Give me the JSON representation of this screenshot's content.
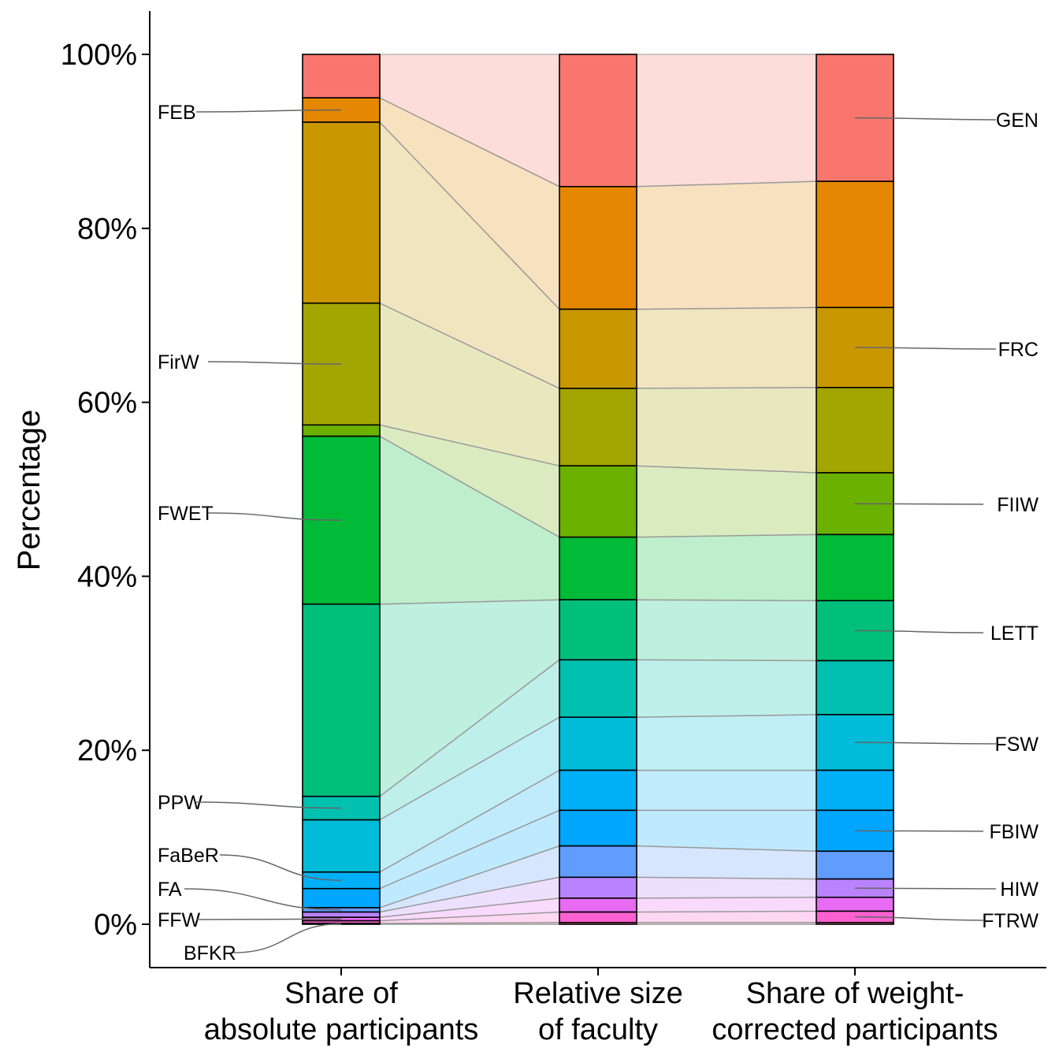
{
  "chart_data": {
    "type": "alluvial",
    "ylabel": "Percentage",
    "ylim": [
      0,
      100
    ],
    "yticks": [
      "0%",
      "20%",
      "40%",
      "60%",
      "80%",
      "100%"
    ],
    "ytick_values": [
      0,
      20,
      40,
      60,
      80,
      100
    ],
    "axes": [
      [
        "Share of",
        "absolute participants"
      ],
      [
        "Relative size",
        "of faculty"
      ],
      [
        "Share of weight-",
        "corrected participants"
      ]
    ],
    "strata": [
      "GEN",
      "FEB",
      "FRC",
      "FirW",
      "FIIW",
      "FWET",
      "LETT",
      "PPW",
      "FSW",
      "FaBeR",
      "FBIW",
      "FA",
      "HIW",
      "FFW",
      "FTRW",
      "BFKR"
    ],
    "colors": {
      "GEN": "#F8766D",
      "FEB": "#E58700",
      "FRC": "#C99800",
      "FirW": "#A3A500",
      "FIIW": "#6BB100",
      "FWET": "#00BA38",
      "LETT": "#00BF7D",
      "PPW": "#00C0AF",
      "FSW": "#00BCD8",
      "FaBeR": "#00B0F6",
      "FBIW": "#00A6FF",
      "FA": "#619CFF",
      "HIW": "#B983FF",
      "FFW": "#E76BF3",
      "FTRW": "#FD61D1",
      "BFKR": "#FF67A4"
    },
    "series": [
      {
        "name": "Share of absolute participants",
        "values": [
          5.0,
          2.8,
          20.8,
          14.0,
          1.3,
          19.3,
          22.1,
          2.7,
          6.0,
          1.9,
          2.2,
          0.5,
          0.6,
          0.4,
          0.3,
          0.1
        ]
      },
      {
        "name": "Relative size of faculty",
        "values": [
          15.2,
          14.1,
          9.1,
          8.9,
          8.2,
          7.2,
          6.9,
          6.6,
          6.1,
          4.6,
          4.1,
          3.6,
          2.4,
          1.6,
          1.2,
          0.2
        ]
      },
      {
        "name": "Share of weight-corrected participants",
        "values": [
          14.6,
          14.5,
          9.2,
          9.8,
          7.1,
          7.6,
          6.9,
          6.2,
          6.4,
          4.6,
          4.7,
          3.2,
          2.1,
          1.6,
          1.3,
          0.2
        ]
      }
    ],
    "labels_left": [
      "FEB",
      "FirW",
      "FWET",
      "PPW",
      "FaBeR",
      "FA",
      "FFW",
      "BFKR"
    ],
    "labels_right": [
      "GEN",
      "FRC",
      "FIIW",
      "LETT",
      "FSW",
      "FBIW",
      "HIW",
      "FTRW"
    ]
  }
}
